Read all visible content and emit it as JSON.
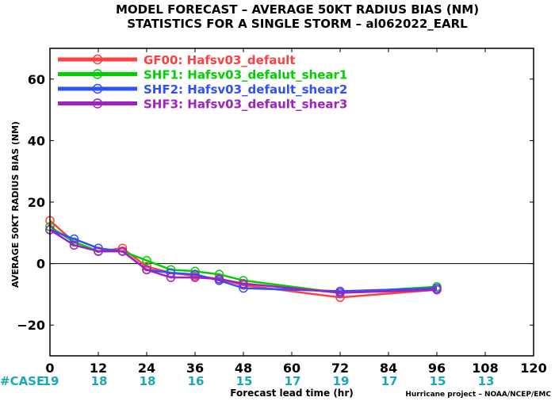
{
  "chart_data": {
    "type": "line",
    "title_line1": "MODEL FORECAST – AVERAGE 50KT RADIUS BIAS (NM)",
    "title_line2": "STATISTICS FOR A SINGLE STORM – al062022_EARL",
    "xlabel": "Forecast lead time (hr)",
    "ylabel": "AVERAGE 50KT RADIUS BIAS (NM)",
    "xlim": [
      0,
      120
    ],
    "ylim": [
      -30,
      70
    ],
    "xticks": [
      0,
      12,
      24,
      36,
      48,
      60,
      72,
      84,
      96,
      108,
      120
    ],
    "yticks": [
      -20,
      0,
      20,
      40,
      60
    ],
    "zero_line": true,
    "legend_position": "top-left",
    "case_label": "#CASE",
    "case_hours": [
      0,
      12,
      24,
      36,
      48,
      60,
      72,
      84,
      96,
      108
    ],
    "case_counts": [
      "19",
      "18",
      "18",
      "16",
      "15",
      "17",
      "19",
      "17",
      "15",
      "13"
    ],
    "footer": "Hurricane project – NOAA/NCEP/EMC",
    "series": [
      {
        "name": "GF00: Hafsv03_default",
        "color": "#ff4040",
        "x": [
          0,
          6,
          12,
          18,
          24,
          30,
          36,
          42,
          48,
          72,
          96
        ],
        "y": [
          14,
          7,
          4,
          5,
          -1,
          -3,
          -4,
          -5,
          -7,
          -11,
          -8.5
        ]
      },
      {
        "name": "SHF1: Hafsv03_defalut_shear1",
        "color": "#00d000",
        "x": [
          0,
          6,
          12,
          18,
          24,
          30,
          36,
          42,
          48,
          72,
          96
        ],
        "y": [
          12,
          7,
          4,
          4,
          1,
          -2,
          -2.5,
          -3.5,
          -5.5,
          -9.5,
          -7.5
        ]
      },
      {
        "name": "SHF2: Hafsv03_default_shear2",
        "color": "#3050ff",
        "x": [
          0,
          6,
          12,
          18,
          24,
          30,
          36,
          42,
          48,
          72,
          96
        ],
        "y": [
          11,
          8,
          5,
          4,
          -2,
          -3,
          -3.5,
          -5.5,
          -8,
          -9,
          -8
        ]
      },
      {
        "name": "SHF3: Hafsv03_default_shear3",
        "color": "#a020c0",
        "x": [
          0,
          6,
          12,
          18,
          24,
          30,
          36,
          42,
          48,
          72,
          96
        ],
        "y": [
          11,
          6,
          4,
          4,
          -2,
          -4.5,
          -4.5,
          -5,
          -6.5,
          -9.5,
          -8.5
        ]
      }
    ]
  }
}
